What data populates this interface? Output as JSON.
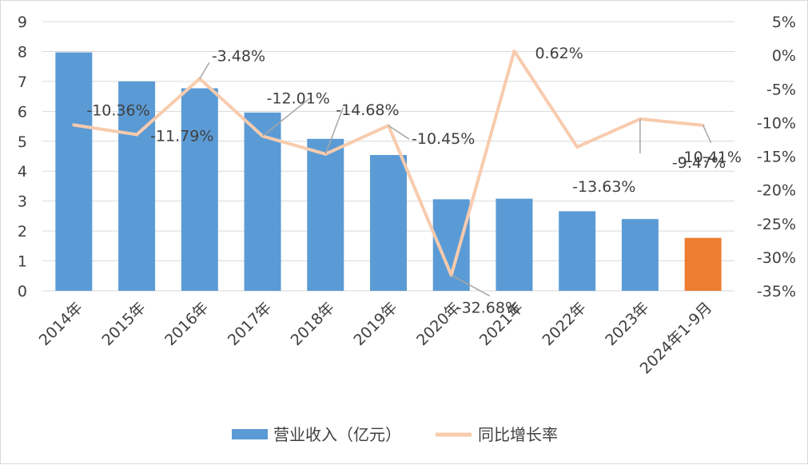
{
  "chart_data": {
    "type": "bar",
    "categories": [
      "2014年",
      "2015年",
      "2016年",
      "2017年",
      "2018年",
      "2019年",
      "2020年",
      "2021年",
      "2022年",
      "2023年",
      "2024年1-9月"
    ],
    "series": [
      {
        "name": "营业收入（亿元）",
        "type": "bar",
        "axis": "left",
        "values": [
          7.97,
          7.0,
          6.77,
          5.96,
          5.08,
          4.54,
          3.06,
          3.08,
          2.66,
          2.4,
          1.77
        ],
        "color": "#5b9bd5",
        "highlight": {
          "index": 10,
          "color": "#ed7d31"
        }
      },
      {
        "name": "同比增长率",
        "type": "line",
        "axis": "right",
        "values": [
          -10.36,
          -11.79,
          -3.48,
          -12.01,
          -14.68,
          -10.45,
          -32.68,
          0.62,
          -13.63,
          -9.47,
          -10.41
        ],
        "labels": [
          "-10.36%",
          "-11.79%",
          "-3.48%",
          "-12.01%",
          "-14.68%",
          "-10.45%",
          "-32.68%",
          "0.62%",
          "-13.63%",
          "-9.47%",
          "-10.41%"
        ],
        "color": "#f8cbad"
      }
    ],
    "left_axis": {
      "min": 0,
      "max": 9,
      "ticks": [
        "0",
        "1",
        "2",
        "3",
        "4",
        "5",
        "6",
        "7",
        "8",
        "9"
      ]
    },
    "right_axis": {
      "min": -35,
      "max": 5,
      "ticks": [
        "-35%",
        "-30%",
        "-25%",
        "-20%",
        "-15%",
        "-10%",
        "-5%",
        "0%",
        "5%"
      ]
    },
    "grid": true,
    "legend_position": "bottom"
  }
}
